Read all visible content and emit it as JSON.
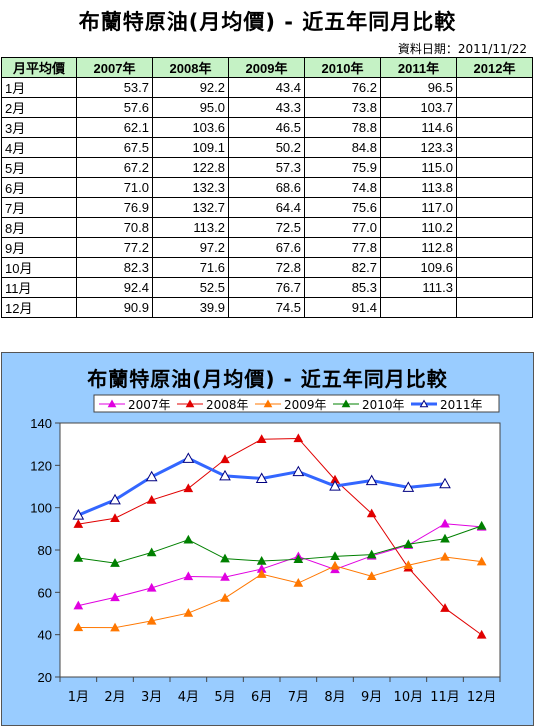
{
  "title": "布蘭特原油(月均價) - 近五年同月比較",
  "date_label": "資料日期：2011/11/22",
  "table": {
    "corner": "月平均價",
    "years": [
      "2007年",
      "2008年",
      "2009年",
      "2010年",
      "2011年",
      "2012年"
    ],
    "rows": [
      {
        "month": "1月",
        "values": [
          "53.7",
          "92.2",
          "43.4",
          "76.2",
          "96.5",
          ""
        ]
      },
      {
        "month": "2月",
        "values": [
          "57.6",
          "95.0",
          "43.3",
          "73.8",
          "103.7",
          ""
        ]
      },
      {
        "month": "3月",
        "values": [
          "62.1",
          "103.6",
          "46.5",
          "78.8",
          "114.6",
          ""
        ]
      },
      {
        "month": "4月",
        "values": [
          "67.5",
          "109.1",
          "50.2",
          "84.8",
          "123.3",
          ""
        ]
      },
      {
        "month": "5月",
        "values": [
          "67.2",
          "122.8",
          "57.3",
          "75.9",
          "115.0",
          ""
        ]
      },
      {
        "month": "6月",
        "values": [
          "71.0",
          "132.3",
          "68.6",
          "74.8",
          "113.8",
          ""
        ]
      },
      {
        "month": "7月",
        "values": [
          "76.9",
          "132.7",
          "64.4",
          "75.6",
          "117.0",
          ""
        ]
      },
      {
        "month": "8月",
        "values": [
          "70.8",
          "113.2",
          "72.5",
          "77.0",
          "110.2",
          ""
        ]
      },
      {
        "month": "9月",
        "values": [
          "77.2",
          "97.2",
          "67.6",
          "77.8",
          "112.8",
          ""
        ]
      },
      {
        "month": "10月",
        "values": [
          "82.3",
          "71.6",
          "72.8",
          "82.7",
          "109.6",
          ""
        ]
      },
      {
        "month": "11月",
        "values": [
          "92.4",
          "52.5",
          "76.7",
          "85.3",
          "111.3",
          ""
        ]
      },
      {
        "month": "12月",
        "values": [
          "90.9",
          "39.9",
          "74.5",
          "91.4",
          "",
          ""
        ]
      }
    ]
  },
  "chart_data": {
    "type": "line",
    "title": "布蘭特原油(月均價) - 近五年同月比較",
    "categories": [
      "1月",
      "2月",
      "3月",
      "4月",
      "5月",
      "6月",
      "7月",
      "8月",
      "9月",
      "10月",
      "11月",
      "12月"
    ],
    "ylim": [
      20,
      140
    ],
    "yticks": [
      20,
      40,
      60,
      80,
      100,
      120,
      140
    ],
    "grid": false,
    "legend_position": "top",
    "plot_background": "#ffffff",
    "frame_background": "#99ccff",
    "series": [
      {
        "name": "2007年",
        "color": "#e000e0",
        "width": 1,
        "values": [
          53.7,
          57.6,
          62.1,
          67.5,
          67.2,
          71.0,
          76.9,
          70.8,
          77.2,
          82.3,
          92.4,
          90.9
        ]
      },
      {
        "name": "2008年",
        "color": "#e00000",
        "width": 1,
        "values": [
          92.2,
          95.0,
          103.6,
          109.1,
          122.8,
          132.3,
          132.7,
          113.2,
          97.2,
          71.6,
          52.5,
          39.9
        ]
      },
      {
        "name": "2009年",
        "color": "#ff7700",
        "width": 1,
        "values": [
          43.4,
          43.3,
          46.5,
          50.2,
          57.3,
          68.6,
          64.4,
          72.5,
          67.6,
          72.8,
          76.7,
          74.5
        ]
      },
      {
        "name": "2010年",
        "color": "#008000",
        "width": 1,
        "values": [
          76.2,
          73.8,
          78.8,
          84.8,
          75.9,
          74.8,
          75.6,
          77.0,
          77.8,
          82.7,
          85.3,
          91.4
        ]
      },
      {
        "name": "2011年",
        "color": "#3366ff",
        "width": 3,
        "values": [
          96.5,
          103.7,
          114.6,
          123.3,
          115.0,
          113.8,
          117.0,
          110.2,
          112.8,
          109.6,
          111.3,
          null
        ]
      }
    ]
  }
}
